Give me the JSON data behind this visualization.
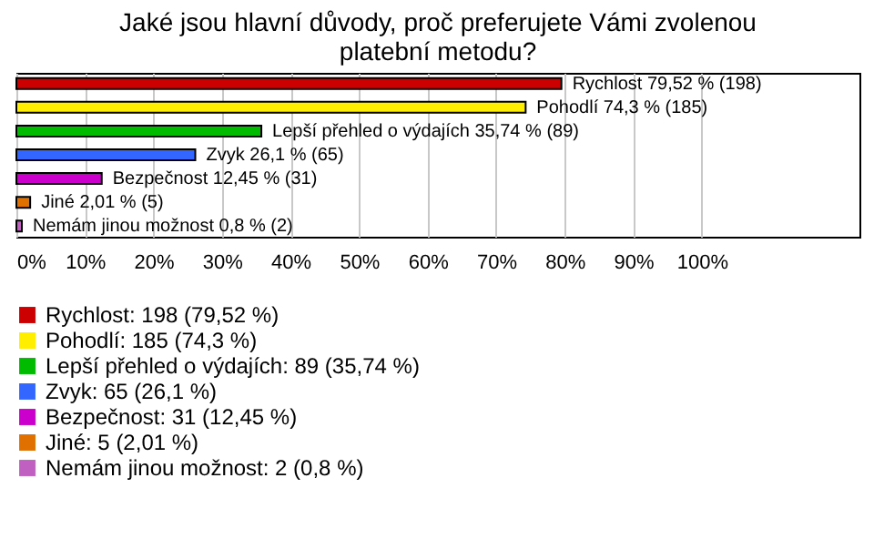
{
  "chart_data": {
    "type": "bar",
    "orientation": "horizontal",
    "title": "Jaké jsou hlavní důvody, proč preferujete Vámi zvolenou platební metodu?",
    "categories": [
      null,
      null,
      null,
      null,
      null,
      null,
      null
    ],
    "series": [
      {
        "name": "Rychlost: 198 (79,52 %)",
        "color": "#cc0000",
        "values": [
          79.52,
          null,
          null,
          null,
          null,
          null,
          null
        ],
        "value_labels": [
          "Rychlost 79,52 % (198)",
          null,
          null,
          null,
          null,
          null,
          null
        ]
      },
      {
        "name": "Pohodlí: 185 (74,3 %)",
        "color": "#ffee00",
        "values": [
          null,
          74.3,
          null,
          null,
          null,
          null,
          null
        ],
        "value_labels": [
          null,
          "Pohodlí 74,3 % (185)",
          null,
          null,
          null,
          null,
          null
        ]
      },
      {
        "name": "Lepší přehled o výdajích: 89 (35,74 %)",
        "color": "#00bb00",
        "values": [
          null,
          null,
          35.74,
          null,
          null,
          null,
          null
        ],
        "value_labels": [
          null,
          null,
          "Lepší přehled o výdajích 35,74 % (89)",
          null,
          null,
          null,
          null
        ]
      },
      {
        "name": "Zvyk: 65 (26,1 %)",
        "color": "#3366ff",
        "values": [
          null,
          null,
          null,
          26.1,
          null,
          null,
          null
        ],
        "value_labels": [
          null,
          null,
          null,
          "Zvyk 26,1 % (65)",
          null,
          null,
          null
        ]
      },
      {
        "name": "Bezpečnost: 31 (12,45 %)",
        "color": "#cc00cc",
        "values": [
          null,
          null,
          null,
          null,
          12.45,
          null,
          null
        ],
        "value_labels": [
          null,
          null,
          null,
          null,
          "Bezpečnost 12,45 % (31)",
          null,
          null
        ]
      },
      {
        "name": "Jiné: 5 (2,01 %)",
        "color": "#e07000",
        "values": [
          null,
          null,
          null,
          null,
          null,
          2.01,
          null
        ],
        "value_labels": [
          null,
          null,
          null,
          null,
          null,
          "Jiné 2,01 % (5)",
          null
        ]
      },
      {
        "name": "Nemám jinou možnost: 2 (0,8 %)",
        "color": "#c060c0",
        "values": [
          null,
          null,
          null,
          null,
          null,
          null,
          0.8
        ],
        "value_labels": [
          null,
          null,
          null,
          null,
          null,
          null,
          "Nemám jinou možnost 0,8 % (2)"
        ]
      }
    ],
    "xlim": [
      0,
      123
    ],
    "xticks": [
      {
        "value": 0,
        "label": "0%"
      },
      {
        "value": 10,
        "label": "10%"
      },
      {
        "value": 20,
        "label": "20%"
      },
      {
        "value": 30,
        "label": "30%"
      },
      {
        "value": 40,
        "label": "40%"
      },
      {
        "value": 50,
        "label": "50%"
      },
      {
        "value": 60,
        "label": "60%"
      },
      {
        "value": 70,
        "label": "70%"
      },
      {
        "value": 80,
        "label": "80%"
      },
      {
        "value": 90,
        "label": "90%"
      },
      {
        "value": 100,
        "label": "100%"
      }
    ],
    "grid": "x",
    "legend": "bottom",
    "tick_labels": "x"
  }
}
